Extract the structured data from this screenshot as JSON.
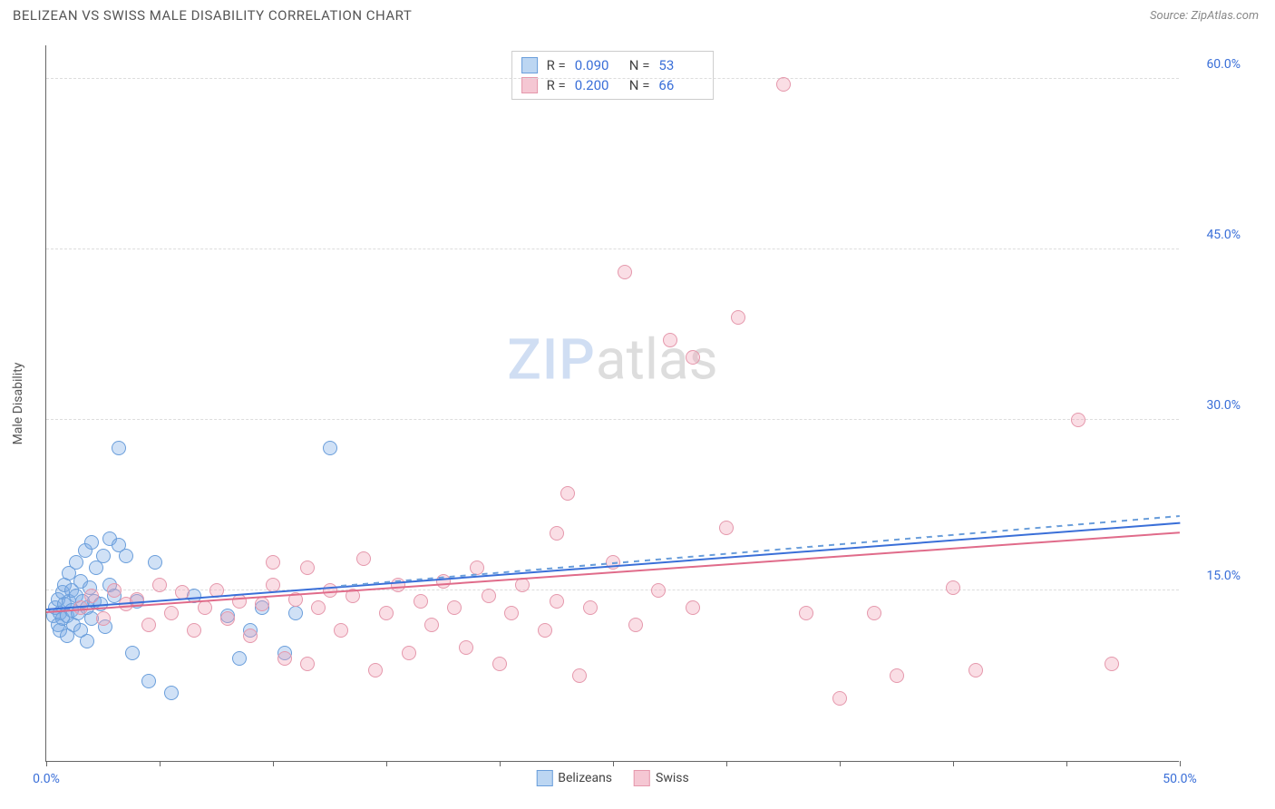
{
  "header": {
    "title": "BELIZEAN VS SWISS MALE DISABILITY CORRELATION CHART",
    "source_prefix": "Source: ",
    "source_name": "ZipAtlas.com"
  },
  "watermark": {
    "part1": "ZIP",
    "part2": "atlas"
  },
  "chart": {
    "type": "scatter",
    "yaxis_title": "Male Disability",
    "background_color": "#ffffff",
    "grid_color": "#dddddd",
    "axis_color": "#666666",
    "label_color": "#3a6fd8",
    "xlim": [
      0,
      50
    ],
    "ylim": [
      0,
      63
    ],
    "xticks": [
      0,
      5,
      10,
      15,
      20,
      25,
      30,
      35,
      40,
      45,
      50
    ],
    "xtick_labels": {
      "0": "0.0%",
      "50": "50.0%"
    },
    "yticks": [
      15,
      30,
      45,
      60
    ],
    "ytick_labels": {
      "15": "15.0%",
      "30": "30.0%",
      "45": "45.0%",
      "60": "60.0%"
    },
    "marker_radius": 8,
    "marker_stroke_width": 1.5,
    "series": [
      {
        "name": "Belizeans",
        "fill": "rgba(120,170,230,0.35)",
        "stroke": "#6a9edb",
        "swatch_fill": "#bcd6f2",
        "swatch_border": "#6a9edb",
        "R": "0.090",
        "N": "53",
        "trend": {
          "y_at_x0": 13.2,
          "y_at_x50": 20.8,
          "color": "#3a6fd8",
          "dash": false,
          "width": 2
        },
        "trend_dash": {
          "y_at_x0": 13.2,
          "y_at_x50": 21.5,
          "color": "#6a9edb",
          "dash": true,
          "width": 1.5,
          "from_x": 13
        },
        "points": [
          [
            0.3,
            12.8
          ],
          [
            0.4,
            13.5
          ],
          [
            0.5,
            12.0
          ],
          [
            0.5,
            14.2
          ],
          [
            0.6,
            11.5
          ],
          [
            0.6,
            13.0
          ],
          [
            0.7,
            14.8
          ],
          [
            0.7,
            12.5
          ],
          [
            0.8,
            13.8
          ],
          [
            0.8,
            15.5
          ],
          [
            0.9,
            11.0
          ],
          [
            0.9,
            12.8
          ],
          [
            1.0,
            14.0
          ],
          [
            1.0,
            16.5
          ],
          [
            1.1,
            13.2
          ],
          [
            1.1,
            15.0
          ],
          [
            1.2,
            12.0
          ],
          [
            1.3,
            14.5
          ],
          [
            1.3,
            17.5
          ],
          [
            1.4,
            13.0
          ],
          [
            1.5,
            15.8
          ],
          [
            1.5,
            11.5
          ],
          [
            1.6,
            14.0
          ],
          [
            1.7,
            18.5
          ],
          [
            1.8,
            13.5
          ],
          [
            1.8,
            10.5
          ],
          [
            1.9,
            15.2
          ],
          [
            2.0,
            12.5
          ],
          [
            2.0,
            19.2
          ],
          [
            2.1,
            14.0
          ],
          [
            2.2,
            17.0
          ],
          [
            2.4,
            13.8
          ],
          [
            2.5,
            18.0
          ],
          [
            2.6,
            11.8
          ],
          [
            2.8,
            15.5
          ],
          [
            2.8,
            19.5
          ],
          [
            3.0,
            14.5
          ],
          [
            3.2,
            19.0
          ],
          [
            3.2,
            27.5
          ],
          [
            3.5,
            18.0
          ],
          [
            3.8,
            9.5
          ],
          [
            4.0,
            14.0
          ],
          [
            4.5,
            7.0
          ],
          [
            4.8,
            17.5
          ],
          [
            5.5,
            6.0
          ],
          [
            6.5,
            14.5
          ],
          [
            8.0,
            12.8
          ],
          [
            8.5,
            9.0
          ],
          [
            9.0,
            11.5
          ],
          [
            9.5,
            13.5
          ],
          [
            10.5,
            9.5
          ],
          [
            11.0,
            13.0
          ],
          [
            12.5,
            27.5
          ]
        ]
      },
      {
        "name": "Swiss",
        "fill": "rgba(240,160,180,0.35)",
        "stroke": "#e598ac",
        "swatch_fill": "#f5c7d3",
        "swatch_border": "#e598ac",
        "R": "0.200",
        "N": "66",
        "trend": {
          "y_at_x0": 13.0,
          "y_at_x50": 20.0,
          "color": "#e06b8a",
          "dash": false,
          "width": 2
        },
        "points": [
          [
            1.5,
            13.5
          ],
          [
            2.0,
            14.5
          ],
          [
            2.5,
            12.5
          ],
          [
            3.0,
            15.0
          ],
          [
            3.5,
            13.8
          ],
          [
            4.0,
            14.2
          ],
          [
            4.5,
            12.0
          ],
          [
            5.0,
            15.5
          ],
          [
            5.5,
            13.0
          ],
          [
            6.0,
            14.8
          ],
          [
            6.5,
            11.5
          ],
          [
            7.0,
            13.5
          ],
          [
            7.5,
            15.0
          ],
          [
            8.0,
            12.5
          ],
          [
            8.5,
            14.0
          ],
          [
            9.0,
            11.0
          ],
          [
            9.5,
            13.8
          ],
          [
            10.0,
            15.5
          ],
          [
            10.0,
            17.5
          ],
          [
            10.5,
            9.0
          ],
          [
            11.0,
            14.2
          ],
          [
            11.5,
            17.0
          ],
          [
            11.5,
            8.5
          ],
          [
            12.0,
            13.5
          ],
          [
            12.5,
            15.0
          ],
          [
            13.0,
            11.5
          ],
          [
            13.5,
            14.5
          ],
          [
            14.0,
            17.8
          ],
          [
            14.5,
            8.0
          ],
          [
            15.0,
            13.0
          ],
          [
            15.5,
            15.5
          ],
          [
            16.0,
            9.5
          ],
          [
            16.5,
            14.0
          ],
          [
            17.0,
            12.0
          ],
          [
            17.5,
            15.8
          ],
          [
            18.0,
            13.5
          ],
          [
            18.5,
            10.0
          ],
          [
            19.0,
            17.0
          ],
          [
            19.5,
            14.5
          ],
          [
            20.0,
            8.5
          ],
          [
            20.5,
            13.0
          ],
          [
            21.0,
            15.5
          ],
          [
            22.0,
            11.5
          ],
          [
            22.5,
            14.0
          ],
          [
            22.5,
            20.0
          ],
          [
            23.0,
            23.5
          ],
          [
            23.5,
            7.5
          ],
          [
            24.0,
            13.5
          ],
          [
            25.0,
            17.5
          ],
          [
            25.5,
            43.0
          ],
          [
            26.0,
            12.0
          ],
          [
            27.0,
            15.0
          ],
          [
            27.5,
            37.0
          ],
          [
            28.5,
            13.5
          ],
          [
            28.5,
            35.5
          ],
          [
            30.0,
            20.5
          ],
          [
            30.5,
            39.0
          ],
          [
            32.5,
            59.5
          ],
          [
            33.5,
            13.0
          ],
          [
            35.0,
            5.5
          ],
          [
            36.5,
            13.0
          ],
          [
            37.5,
            7.5
          ],
          [
            40.0,
            15.2
          ],
          [
            41.0,
            8.0
          ],
          [
            45.5,
            30.0
          ],
          [
            47.0,
            8.5
          ]
        ]
      }
    ],
    "legend_bottom": [
      {
        "label": "Belizeans",
        "series": 0
      },
      {
        "label": "Swiss",
        "series": 1
      }
    ]
  }
}
